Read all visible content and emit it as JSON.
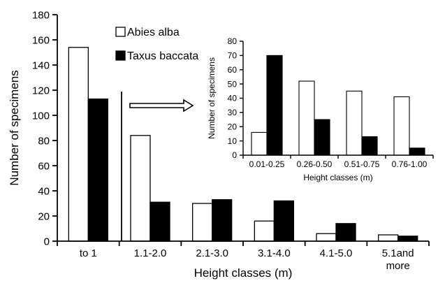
{
  "chart_data": [
    {
      "type": "bar",
      "title": "",
      "xlabel": "Height classes (m)",
      "ylabel": "Number of specimens",
      "ylim": [
        0,
        180
      ],
      "yticks": [
        0,
        20,
        40,
        60,
        80,
        100,
        120,
        140,
        160,
        180
      ],
      "categories": [
        "to 1",
        "1.1-2.0",
        "2.1-3.0",
        "3.1-4.0",
        "4.1-5.0",
        "5.1and more"
      ],
      "category_lines": [
        [
          "to 1"
        ],
        [
          "1.1-2.0"
        ],
        [
          "2.1-3.0"
        ],
        [
          "3.1-4.0"
        ],
        [
          "4.1-5.0"
        ],
        [
          "5.1and",
          "more"
        ]
      ],
      "series": [
        {
          "name": "Abies alba",
          "color": "#ffffff",
          "values": [
            154,
            84,
            30,
            16,
            6,
            5
          ]
        },
        {
          "name": "Taxus baccata",
          "color": "#000000",
          "values": [
            113,
            31,
            33,
            32,
            14,
            4
          ]
        }
      ],
      "legend": "top-left inside plot",
      "grid": false
    },
    {
      "type": "bar",
      "title": "",
      "xlabel": "Height classes (m)",
      "ylabel": "Number of specimens",
      "ylim": [
        0,
        80
      ],
      "yticks": [
        0,
        10,
        20,
        30,
        40,
        50,
        60,
        70,
        80
      ],
      "categories": [
        "0.01-0.25",
        "0.26-0.50",
        "0.51-0.75",
        "0.76-1.00"
      ],
      "series": [
        {
          "name": "Abies alba",
          "color": "#ffffff",
          "values": [
            16,
            52,
            45,
            41
          ]
        },
        {
          "name": "Taxus baccata",
          "color": "#000000",
          "values": [
            70,
            25,
            13,
            5
          ]
        }
      ],
      "grid": false
    }
  ]
}
